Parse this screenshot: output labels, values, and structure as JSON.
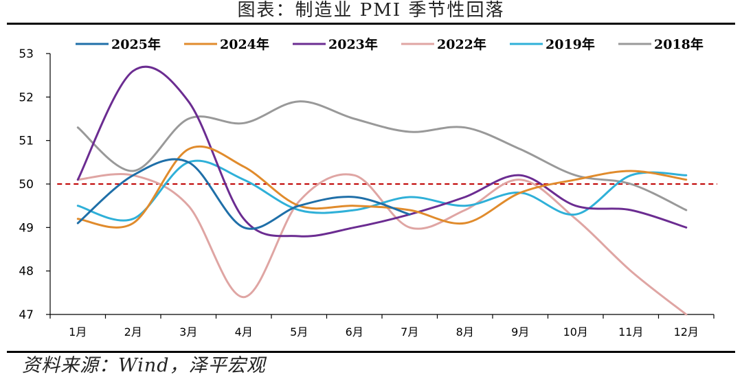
{
  "title": "图表：制造业 PMI 季节性回落",
  "source": "资料来源：Wind，泽平宏观",
  "chart_data": {
    "type": "line",
    "categories": [
      "1月",
      "2月",
      "3月",
      "4月",
      "5月",
      "6月",
      "7月",
      "8月",
      "9月",
      "10月",
      "11月",
      "12月"
    ],
    "ylim": [
      47,
      53
    ],
    "yticks": [
      47,
      48,
      49,
      50,
      51,
      52,
      53
    ],
    "grid": false,
    "smooth": true,
    "legend_position": "top",
    "reference_line": {
      "value": 50,
      "color": "#c00000",
      "style": "dashed"
    },
    "series": [
      {
        "name": "2025年",
        "color": "#1f6fa8",
        "values": [
          49.1,
          50.2,
          50.5,
          49.0,
          49.5,
          49.7,
          49.3,
          null,
          null,
          null,
          null,
          null
        ]
      },
      {
        "name": "2024年",
        "color": "#e08b2c",
        "values": [
          49.2,
          49.1,
          50.8,
          50.4,
          49.5,
          49.5,
          49.4,
          49.1,
          49.8,
          50.1,
          50.3,
          50.1
        ]
      },
      {
        "name": "2023年",
        "color": "#6b2c91",
        "values": [
          50.1,
          52.6,
          51.9,
          49.2,
          48.8,
          49.0,
          49.3,
          49.7,
          50.2,
          49.5,
          49.4,
          49.0
        ]
      },
      {
        "name": "2022年",
        "color": "#dfa5a3",
        "values": [
          50.1,
          50.2,
          49.5,
          47.4,
          49.6,
          50.2,
          49.0,
          49.4,
          50.1,
          49.2,
          48.0,
          47.0
        ]
      },
      {
        "name": "2019年",
        "color": "#2fb0d8",
        "values": [
          49.5,
          49.2,
          50.5,
          50.1,
          49.4,
          49.4,
          49.7,
          49.5,
          49.8,
          49.3,
          50.2,
          50.2
        ]
      },
      {
        "name": "2018年",
        "color": "#999999",
        "values": [
          51.3,
          50.3,
          51.5,
          51.4,
          51.9,
          51.5,
          51.2,
          51.3,
          50.8,
          50.2,
          50.0,
          49.4
        ]
      }
    ]
  }
}
